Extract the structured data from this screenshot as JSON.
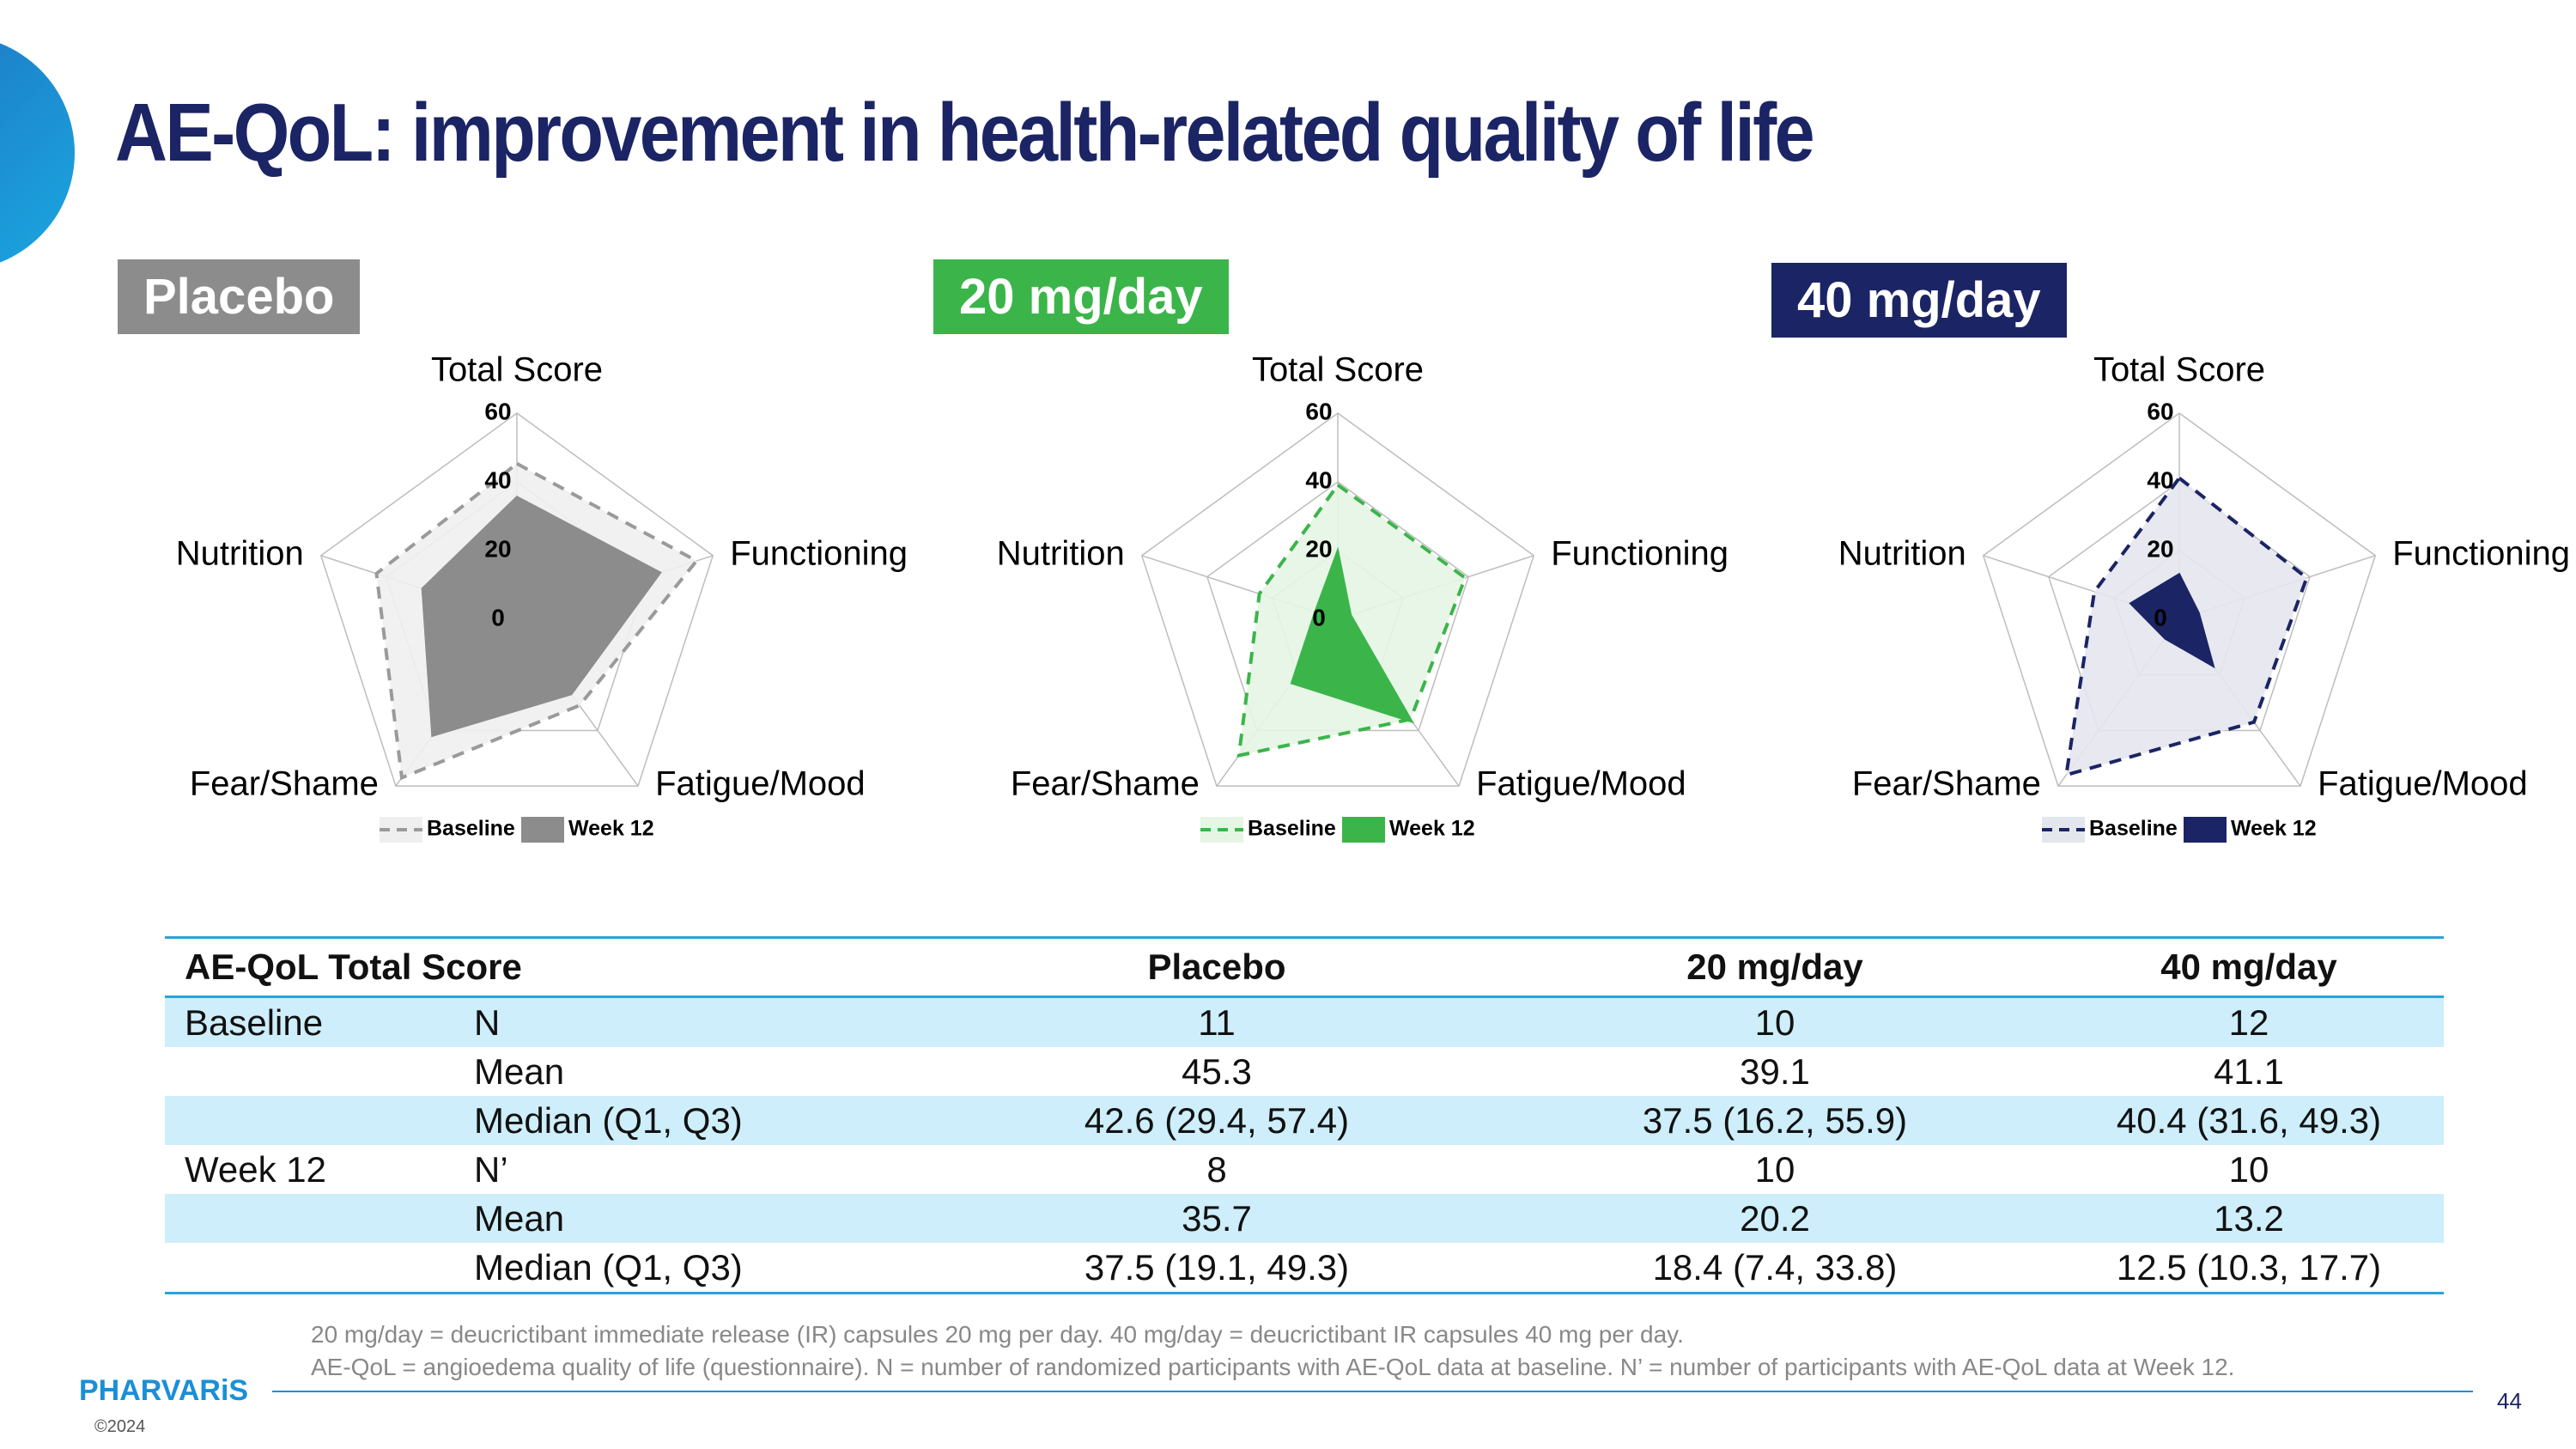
{
  "title": "AE-QoL: improvement in health-related quality of life",
  "chart_data": [
    {
      "type": "radar",
      "title": "Placebo",
      "title_color": "#8c8c8c",
      "categories": [
        "Total Score",
        "Functioning",
        "Fatigue/Mood",
        "Fear/Shame",
        "Nutrition"
      ],
      "ylim": [
        0,
        60
      ],
      "yticks": [
        0,
        20,
        40,
        60
      ],
      "grid": true,
      "legend": "bottom",
      "series": [
        {
          "name": "Baseline",
          "color": "#9a9a9a",
          "fill": "#efefef",
          "dash": true,
          "values": [
            45.3,
            55,
            31,
            57,
            43
          ]
        },
        {
          "name": "Week 12",
          "color": "#8c8c8c",
          "fill": "#8c8c8c",
          "values": [
            35.7,
            44,
            27,
            42,
            29
          ]
        }
      ]
    },
    {
      "type": "radar",
      "title": "20 mg/day",
      "title_color": "#3bb54a",
      "categories": [
        "Total Score",
        "Functioning",
        "Fatigue/Mood",
        "Fear/Shame",
        "Nutrition"
      ],
      "ylim": [
        0,
        60
      ],
      "yticks": [
        0,
        20,
        40,
        60
      ],
      "grid": true,
      "legend": "bottom",
      "series": [
        {
          "name": "Baseline",
          "color": "#3bb54a",
          "fill": "#e6f5e4",
          "dash": true,
          "values": [
            39.1,
            39,
            36,
            49,
            24
          ]
        },
        {
          "name": "Week 12",
          "color": "#3bb54a",
          "fill": "#3bb54a",
          "values": [
            20.2,
            4,
            37,
            23,
            7
          ]
        }
      ]
    },
    {
      "type": "radar",
      "title": "40 mg/day",
      "title_color": "#1b2464",
      "categories": [
        "Total Score",
        "Functioning",
        "Fatigue/Mood",
        "Fear/Shame",
        "Nutrition"
      ],
      "ylim": [
        0,
        60
      ],
      "yticks": [
        0,
        20,
        40,
        60
      ],
      "grid": true,
      "legend": "bottom",
      "series": [
        {
          "name": "Baseline",
          "color": "#1b2464",
          "fill": "#e4e6ee",
          "dash": true,
          "values": [
            41.1,
            39,
            37,
            56,
            26
          ]
        },
        {
          "name": "Week 12",
          "color": "#1b2464",
          "fill": "#1b2464",
          "values": [
            13.2,
            6,
            17,
            7,
            15
          ]
        }
      ]
    }
  ],
  "table": {
    "header": {
      "label": "AE-QoL Total Score",
      "columns": [
        "Placebo",
        "20 mg/day",
        "40 mg/day"
      ]
    },
    "rows": [
      {
        "group": "Baseline",
        "stat": "N",
        "cells": [
          "11",
          "10",
          "12"
        ]
      },
      {
        "stat": "Mean",
        "cells": [
          "45.3",
          "39.1",
          "41.1"
        ]
      },
      {
        "stat": "Median (Q1, Q3)",
        "cells": [
          "42.6 (29.4, 57.4)",
          "37.5 (16.2, 55.9)",
          "40.4 (31.6, 49.3)"
        ]
      },
      {
        "group": "Week 12",
        "stat": "N’",
        "cells": [
          "8",
          "10",
          "10"
        ]
      },
      {
        "stat": "Mean",
        "cells": [
          "35.7",
          "20.2",
          "13.2"
        ]
      },
      {
        "stat": "Median (Q1, Q3)",
        "cells": [
          "37.5 (19.1, 49.3)",
          "18.4 (7.4, 33.8)",
          "12.5 (10.3, 17.7)"
        ]
      }
    ]
  },
  "footnotes": [
    "20 mg/day = deucrictibant immediate release (IR) capsules 20 mg per day. 40 mg/day = deucrictibant IR capsules 40 mg per day.",
    "AE-QoL = angioedema quality of life (questionnaire).  N = number of randomized participants with AE-QoL data at baseline. N’ = number of participants with AE-QoL data at Week 12."
  ],
  "logo": "PHARVARiS",
  "copyright": "©2024",
  "page_number": "44"
}
